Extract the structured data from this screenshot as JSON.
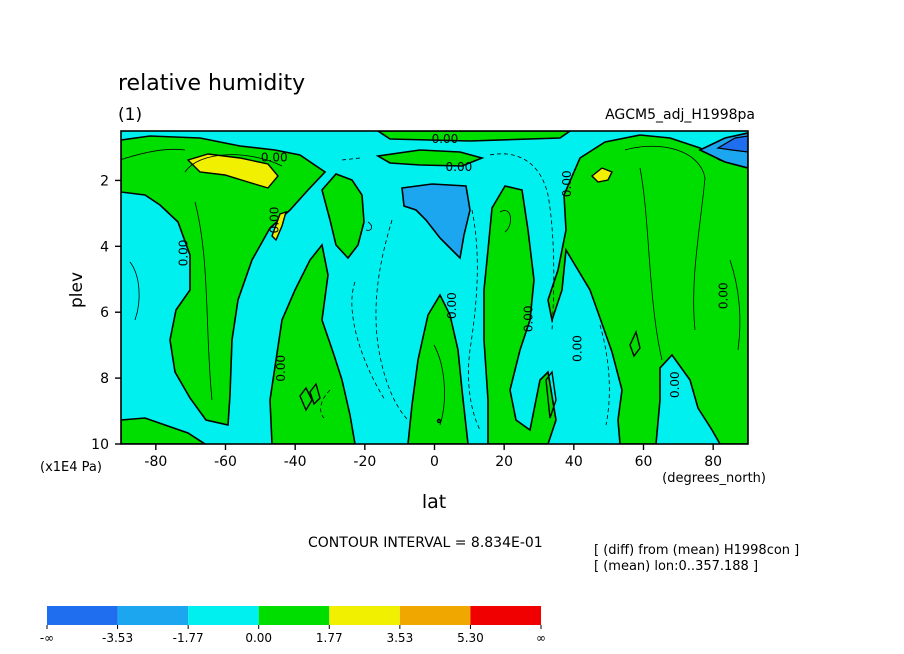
{
  "chart_data": {
    "type": "heatmap",
    "title": "relative humidity",
    "subtitle_left": "(1)",
    "subtitle_right": "AGCM5_adj_H1998pa",
    "xlabel": "lat",
    "xunit": "(degrees_north)",
    "ylabel": "plev",
    "yunit": "(x1E4 Pa)",
    "xlim": [
      -90,
      90
    ],
    "ylim": [
      10,
      0.5
    ],
    "x_ticks": [
      "-80",
      "-60",
      "-40",
      "-20",
      "0",
      "20",
      "40",
      "60",
      "80"
    ],
    "x_tick_values": [
      -80,
      -60,
      -40,
      -20,
      0,
      20,
      40,
      60,
      80
    ],
    "y_ticks": [
      "2",
      "4",
      "6",
      "8",
      "10"
    ],
    "y_tick_values": [
      2,
      4,
      6,
      8,
      10
    ],
    "contour_interval": "CONTOUR INTERVAL = 8.834E-01",
    "notes": [
      "[ (diff) from (mean) H1998con ]",
      "[ (mean) lon:0..357.188 ]"
    ],
    "contour_labels": [
      {
        "text": "0.00",
        "lat": 3,
        "plev": 0.75
      },
      {
        "text": "0.00",
        "lat": -46,
        "plev": 1.3
      },
      {
        "text": "0.00",
        "lat": 7,
        "plev": 1.6
      },
      {
        "text": "0.00",
        "lat": -72,
        "plev": 4.2
      },
      {
        "text": "0.00",
        "lat": -46,
        "plev": 3.2
      },
      {
        "text": "0.00",
        "lat": 38,
        "plev": 2.1
      },
      {
        "text": "0.00",
        "lat": 5,
        "plev": 5.8
      },
      {
        "text": "0.00",
        "lat": 27,
        "plev": 6.2
      },
      {
        "text": "0.00",
        "lat": 41,
        "plev": 7.1
      },
      {
        "text": "0.00",
        "lat": 83,
        "plev": 5.5
      },
      {
        "text": "0.00",
        "lat": -44,
        "plev": 7.7
      },
      {
        "text": "0.00",
        "lat": 69,
        "plev": 8.2
      }
    ],
    "colorbar": {
      "colors": [
        "#1f6ef0",
        "#1da6f0",
        "#00f0f0",
        "#00de00",
        "#f0f000",
        "#f0a800",
        "#f00000"
      ],
      "labels": [
        "-∞",
        "-3.53",
        "-1.77",
        "0.00",
        "1.77",
        "3.53",
        "5.30",
        "∞"
      ]
    }
  }
}
